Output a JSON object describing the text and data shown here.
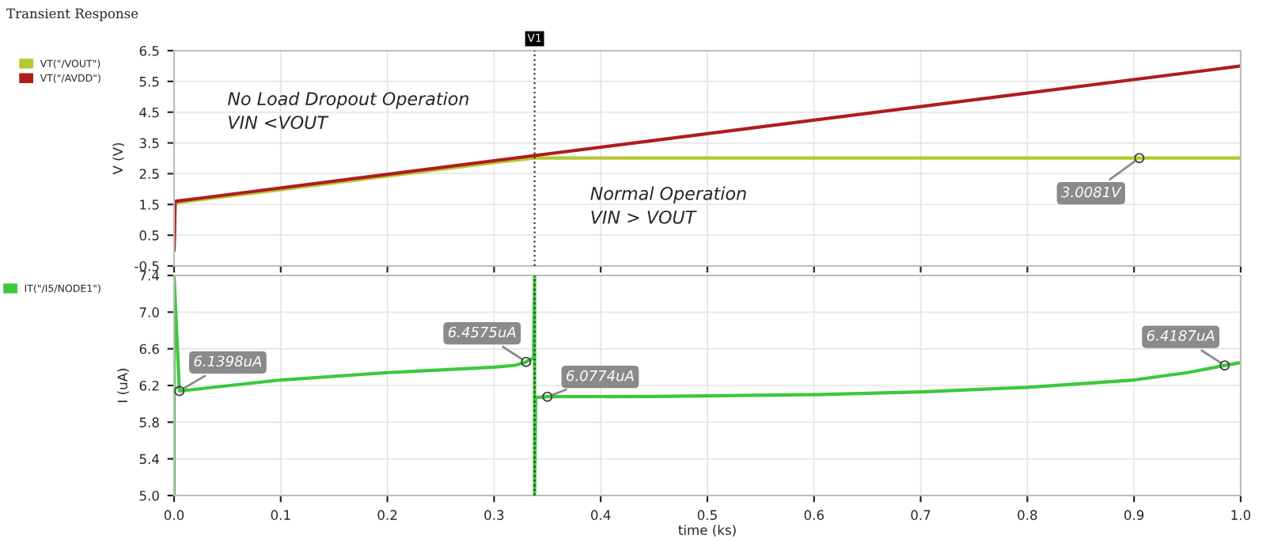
{
  "chart_data": [
    {
      "type": "line",
      "title": "Transient Response",
      "ylabel": "V (V)",
      "xlim": [
        0.0,
        1.0
      ],
      "xticks": [
        0.0,
        0.1,
        0.2,
        0.3,
        0.4,
        0.5,
        0.6,
        0.7,
        0.8,
        0.9,
        1.0
      ],
      "ylim": [
        -0.5,
        6.5
      ],
      "yticks": [
        -0.5,
        0.5,
        1.5,
        2.5,
        3.5,
        4.5,
        5.5,
        6.5
      ],
      "tick_labels": "y",
      "grid": true,
      "legend": "left",
      "line_style": "solid",
      "series": [
        {
          "name": "VT(\"/VOUT\")",
          "color": "#b5c830",
          "x": [
            0.0,
            0.001,
            0.1,
            0.2,
            0.3,
            0.338,
            0.5,
            0.7,
            0.905,
            1.0
          ],
          "values": [
            0.0,
            1.55,
            1.98,
            2.42,
            2.86,
            3.0081,
            3.0081,
            3.0081,
            3.0081,
            3.0081
          ]
        },
        {
          "name": "VT(\"/AVDD\")",
          "color": "#b01c1c",
          "x": [
            0.0,
            0.001,
            0.338,
            1.0
          ],
          "values": [
            0.0,
            1.6,
            3.09,
            6.0
          ]
        }
      ],
      "ref_lines": [
        {
          "axis": "x",
          "value": 0.338,
          "label": "V1",
          "line_style": "dotted"
        }
      ],
      "annotations": [
        "No Load Dropout Operation\nVIN <VOUT",
        "Normal Operation\nVIN > VOUT",
        {
          "text": "3.0081V",
          "x": 0.905,
          "y": 3.0081
        }
      ]
    },
    {
      "type": "line",
      "xlabel": "time (ks)",
      "ylabel": "I (uA)",
      "xlim": [
        0.0,
        1.0
      ],
      "xticks": [
        {
          "value": 0,
          "label": "0.0"
        },
        0.1,
        0.2,
        0.3,
        0.4,
        0.5,
        0.6,
        0.7,
        0.8,
        0.9,
        {
          "value": 1,
          "label": "1.0"
        }
      ],
      "ylim": [
        5.0,
        7.4
      ],
      "yticks": [
        {
          "value": 5,
          "label": "5.0"
        },
        5.4,
        5.8,
        6.2,
        6.6,
        {
          "value": 7,
          "label": "7.0"
        },
        7.4
      ],
      "grid": true,
      "legend": "left",
      "line_style": "solid",
      "series": [
        {
          "name": "IT(\"/I5/NODE1\")",
          "color": "#3cc83c",
          "x": [
            0.0,
            0.0,
            0.005,
            0.1,
            0.2,
            0.3,
            0.32,
            0.33,
            0.337,
            0.338,
            0.338,
            0.339,
            0.35,
            0.45,
            0.6,
            0.7,
            0.8,
            0.9,
            0.95,
            0.985,
            1.0
          ],
          "values": [
            5.0,
            7.4,
            6.1398,
            6.26,
            6.34,
            6.4,
            6.42,
            6.4575,
            6.5,
            7.4,
            5.0,
            6.07,
            6.0774,
            6.08,
            6.1,
            6.13,
            6.18,
            6.26,
            6.34,
            6.4187,
            6.45
          ]
        }
      ],
      "ref_lines": [
        {
          "axis": "x",
          "value": 0.338,
          "line_style": "dotted"
        }
      ],
      "annotations": [
        {
          "text": "6.1398uA",
          "x": 0.005,
          "y": 6.1398
        },
        {
          "text": "6.4575uA",
          "x": 0.33,
          "y": 6.4575
        },
        {
          "text": "6.0774uA",
          "x": 0.35,
          "y": 6.0774
        },
        {
          "text": "6.4187uA",
          "x": 0.985,
          "y": 6.4187
        }
      ]
    }
  ]
}
